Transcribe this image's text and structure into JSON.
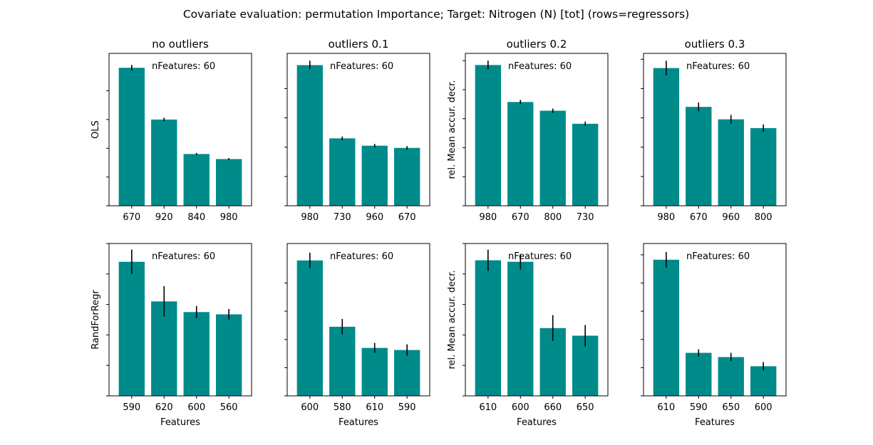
{
  "figure": {
    "suptitle": "Covariate evaluation: permutation Importance; Target: Nitrogen (N) [tot] (rows=regressors)"
  },
  "chart_data": [
    {
      "type": "bar",
      "row_label": "OLS",
      "title": "no outliers",
      "annotation": "nFeatures: 60",
      "categories": [
        "670",
        "920",
        "840",
        "980"
      ],
      "values": [
        0.96,
        0.6,
        0.36,
        0.325
      ],
      "errors": [
        0.02,
        0.012,
        0.007,
        0.007
      ],
      "ylim": [
        0,
        1.06
      ],
      "ytick_count": 5,
      "xlabel": "",
      "ylabel": "OLS",
      "bar_color": "#008b8b"
    },
    {
      "type": "bar",
      "row_label": "OLS",
      "title": "outliers 0.1",
      "annotation": "nFeatures: 60",
      "categories": [
        "980",
        "730",
        "960",
        "670"
      ],
      "values": [
        0.96,
        0.46,
        0.41,
        0.395
      ],
      "errors": [
        0.03,
        0.013,
        0.012,
        0.012
      ],
      "ylim": [
        0,
        1.04
      ],
      "ytick_count": 5,
      "xlabel": "",
      "ylabel": "",
      "bar_color": "#008b8b"
    },
    {
      "type": "bar",
      "row_label": "OLS",
      "title": "outliers 0.2",
      "annotation": "nFeatures: 60",
      "categories": [
        "980",
        "670",
        "800",
        "730"
      ],
      "values": [
        0.97,
        0.715,
        0.655,
        0.565
      ],
      "errors": [
        0.03,
        0.015,
        0.015,
        0.015
      ],
      "ylim": [
        0,
        1.05
      ],
      "ytick_count": 6,
      "xlabel": "",
      "ylabel": "rel. Mean accur. decr.",
      "bar_color": "#008b8b"
    },
    {
      "type": "bar",
      "row_label": "OLS",
      "title": "outliers 0.3",
      "annotation": "nFeatures: 60",
      "categories": [
        "980",
        "670",
        "960",
        "800"
      ],
      "values": [
        0.94,
        0.675,
        0.59,
        0.53
      ],
      "errors": [
        0.05,
        0.03,
        0.03,
        0.025
      ],
      "ylim": [
        0,
        1.04
      ],
      "ytick_count": 6,
      "xlabel": "",
      "ylabel": "",
      "bar_color": "#008b8b"
    },
    {
      "type": "bar",
      "row_label": "RandForRegr",
      "title": "",
      "annotation": "nFeatures: 60",
      "categories": [
        "590",
        "620",
        "600",
        "560"
      ],
      "values": [
        0.88,
        0.62,
        0.55,
        0.535
      ],
      "errors": [
        0.08,
        0.1,
        0.04,
        0.035
      ],
      "ylim": [
        0,
        1.0
      ],
      "ytick_count": 6,
      "xlabel": "Features",
      "ylabel": "RandForRegr",
      "bar_color": "#008b8b"
    },
    {
      "type": "bar",
      "row_label": "RandForRegr",
      "title": "",
      "annotation": "nFeatures: 60",
      "categories": [
        "600",
        "580",
        "610",
        "590"
      ],
      "values": [
        0.96,
        0.49,
        0.34,
        0.325
      ],
      "errors": [
        0.055,
        0.055,
        0.035,
        0.04
      ],
      "ylim": [
        0,
        1.08
      ],
      "ytick_count": 5,
      "xlabel": "Features",
      "ylabel": "",
      "bar_color": "#008b8b"
    },
    {
      "type": "bar",
      "row_label": "RandForRegr",
      "title": "",
      "annotation": "nFeatures: 60",
      "categories": [
        "610",
        "600",
        "660",
        "650"
      ],
      "values": [
        0.89,
        0.88,
        0.445,
        0.395
      ],
      "errors": [
        0.07,
        0.05,
        0.085,
        0.07
      ],
      "ylim": [
        0,
        1.0
      ],
      "ytick_count": 7,
      "xlabel": "Features",
      "ylabel": "rel. Mean accur. decr.",
      "bar_color": "#008b8b"
    },
    {
      "type": "bar",
      "row_label": "RandForRegr",
      "title": "",
      "annotation": "nFeatures: 60",
      "categories": [
        "610",
        "590",
        "650",
        "600"
      ],
      "values": [
        0.965,
        0.305,
        0.275,
        0.21
      ],
      "errors": [
        0.055,
        0.025,
        0.03,
        0.03
      ],
      "ylim": [
        0,
        1.08
      ],
      "ytick_count": 7,
      "xlabel": "Features",
      "ylabel": "",
      "bar_color": "#008b8b"
    }
  ]
}
